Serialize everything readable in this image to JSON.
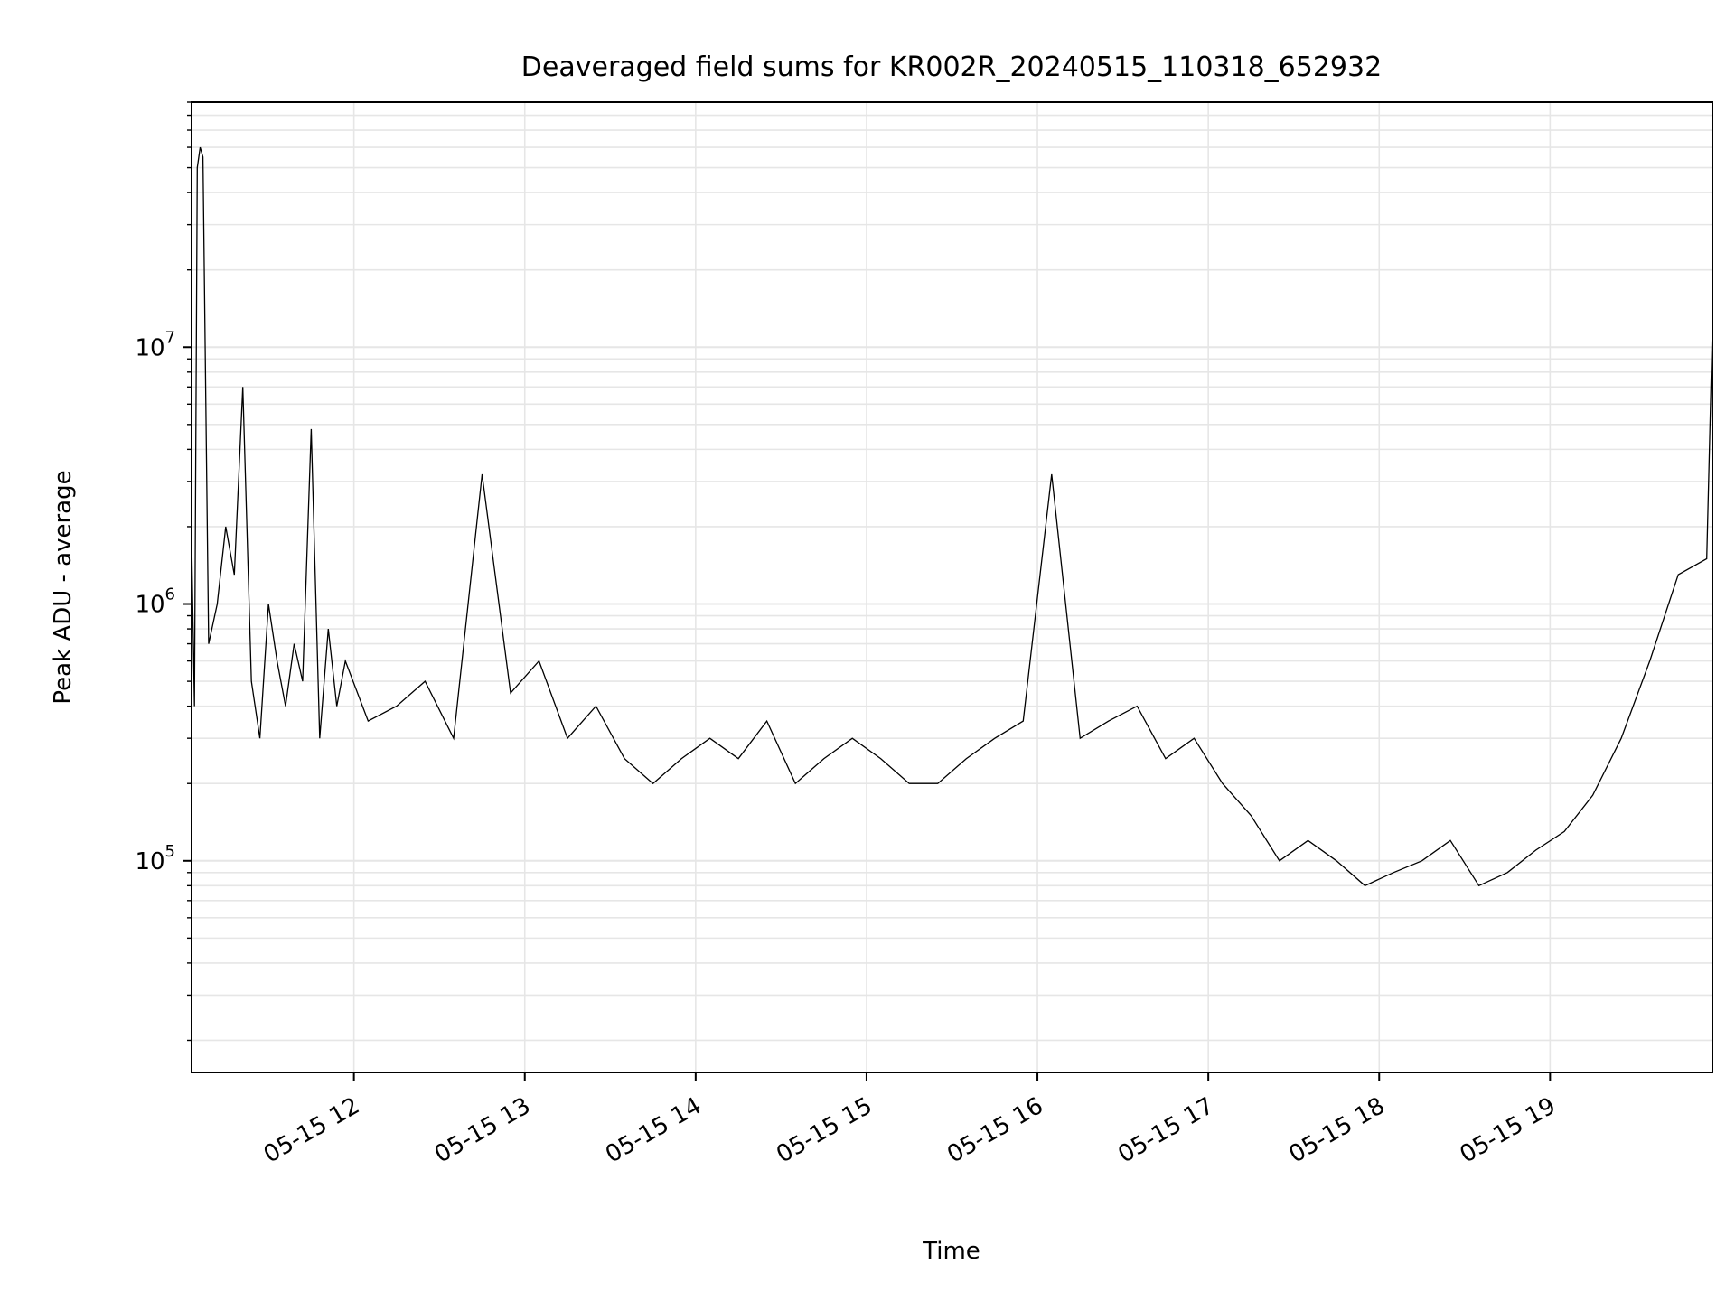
{
  "chart_data": {
    "type": "line",
    "title": "Deaveraged field sums for KR002R_20240515_110318_652932",
    "xlabel": "Time",
    "ylabel": "Peak ADU - average",
    "y_scale": "log",
    "ylim": [
      15000,
      90000000
    ],
    "xlim": [
      "2024-05-15 11:03",
      "2024-05-15 19:57"
    ],
    "grid": true,
    "line_color": "#000000",
    "grid_color": "#e6e6e6",
    "x_ticks": [
      {
        "label": "05-15 12",
        "value": "2024-05-15 12:00"
      },
      {
        "label": "05-15 13",
        "value": "2024-05-15 13:00"
      },
      {
        "label": "05-15 14",
        "value": "2024-05-15 14:00"
      },
      {
        "label": "05-15 15",
        "value": "2024-05-15 15:00"
      },
      {
        "label": "05-15 16",
        "value": "2024-05-15 16:00"
      },
      {
        "label": "05-15 17",
        "value": "2024-05-15 17:00"
      },
      {
        "label": "05-15 18",
        "value": "2024-05-15 18:00"
      },
      {
        "label": "05-15 19",
        "value": "2024-05-15 19:00"
      }
    ],
    "y_ticks": [
      {
        "base": "10",
        "exp": "5",
        "value": 100000
      },
      {
        "base": "10",
        "exp": "6",
        "value": 1000000
      },
      {
        "base": "10",
        "exp": "7",
        "value": 10000000
      }
    ],
    "series": [
      {
        "x": [
          "2024-05-15 11:03",
          "2024-05-15 11:04",
          "2024-05-15 11:05",
          "2024-05-15 11:06",
          "2024-05-15 11:07",
          "2024-05-15 11:09",
          "2024-05-15 11:12",
          "2024-05-15 11:15",
          "2024-05-15 11:18",
          "2024-05-15 11:21",
          "2024-05-15 11:24",
          "2024-05-15 11:27",
          "2024-05-15 11:30",
          "2024-05-15 11:33",
          "2024-05-15 11:36",
          "2024-05-15 11:39",
          "2024-05-15 11:42",
          "2024-05-15 11:45",
          "2024-05-15 11:48",
          "2024-05-15 11:51",
          "2024-05-15 11:54",
          "2024-05-15 11:57",
          "2024-05-15 12:05",
          "2024-05-15 12:15",
          "2024-05-15 12:25",
          "2024-05-15 12:35",
          "2024-05-15 12:45",
          "2024-05-15 12:55",
          "2024-05-15 13:05",
          "2024-05-15 13:15",
          "2024-05-15 13:25",
          "2024-05-15 13:35",
          "2024-05-15 13:45",
          "2024-05-15 13:55",
          "2024-05-15 14:05",
          "2024-05-15 14:15",
          "2024-05-15 14:25",
          "2024-05-15 14:35",
          "2024-05-15 14:45",
          "2024-05-15 14:55",
          "2024-05-15 15:05",
          "2024-05-15 15:15",
          "2024-05-15 15:25",
          "2024-05-15 15:35",
          "2024-05-15 15:45",
          "2024-05-15 15:55",
          "2024-05-15 16:05",
          "2024-05-15 16:15",
          "2024-05-15 16:25",
          "2024-05-15 16:35",
          "2024-05-15 16:45",
          "2024-05-15 16:55",
          "2024-05-15 17:05",
          "2024-05-15 17:15",
          "2024-05-15 17:25",
          "2024-05-15 17:35",
          "2024-05-15 17:45",
          "2024-05-15 17:55",
          "2024-05-15 18:05",
          "2024-05-15 18:15",
          "2024-05-15 18:25",
          "2024-05-15 18:35",
          "2024-05-15 18:45",
          "2024-05-15 18:55",
          "2024-05-15 19:05",
          "2024-05-15 19:15",
          "2024-05-15 19:25",
          "2024-05-15 19:35",
          "2024-05-15 19:45",
          "2024-05-15 19:55",
          "2024-05-15 19:57"
        ],
        "values": [
          1800000,
          400000,
          50000000,
          60000000,
          55000000,
          700000,
          1000000,
          2000000,
          1300000,
          7000000,
          500000,
          300000,
          1000000,
          600000,
          400000,
          700000,
          500000,
          4800000,
          300000,
          800000,
          400000,
          600000,
          350000,
          400000,
          500000,
          300000,
          3200000,
          450000,
          600000,
          300000,
          400000,
          250000,
          200000,
          250000,
          300000,
          250000,
          350000,
          200000,
          250000,
          300000,
          250000,
          200000,
          200000,
          250000,
          300000,
          350000,
          3200000,
          300000,
          350000,
          400000,
          250000,
          300000,
          200000,
          150000,
          100000,
          120000,
          100000,
          80000,
          90000,
          100000,
          120000,
          80000,
          90000,
          110000,
          130000,
          180000,
          300000,
          600000,
          1300000,
          1500000,
          12000000
        ]
      }
    ]
  }
}
